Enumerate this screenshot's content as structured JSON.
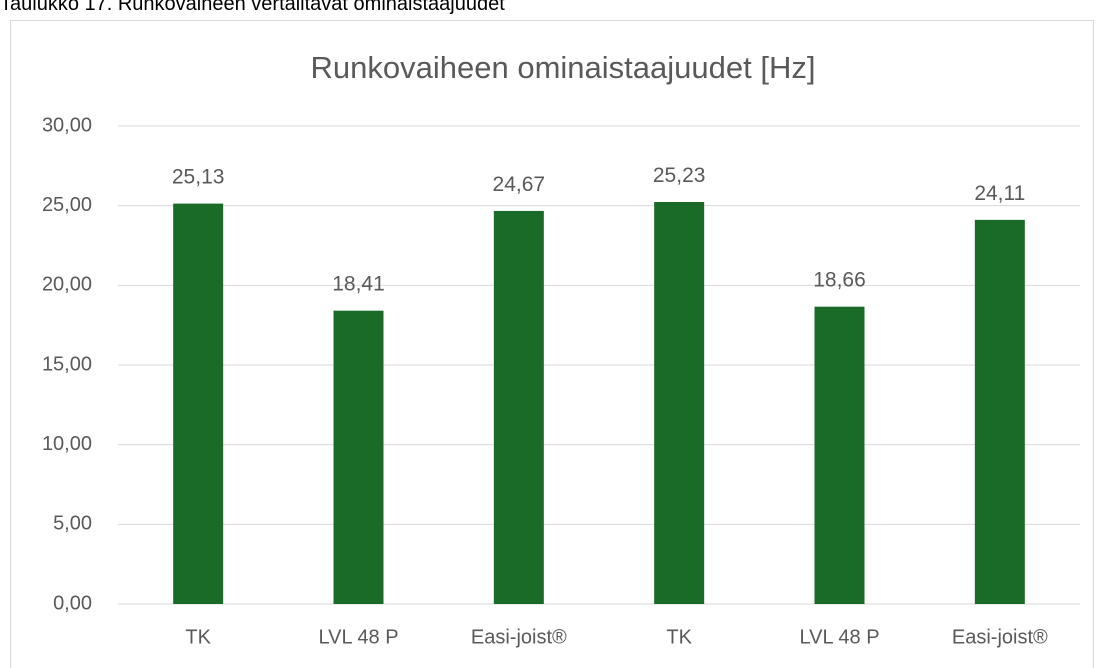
{
  "caption": "Taulukko 17. Runkovaiheen vertailtavat ominaistaajuudet",
  "chart_data": {
    "type": "bar",
    "title": "Runkovaiheen ominaistaajuudet [Hz]",
    "categories": [
      "TK",
      "LVL 48 P",
      "Easi-joist®",
      "TK",
      "LVL 48 P",
      "Easi-joist®"
    ],
    "values": [
      25.13,
      18.41,
      24.67,
      25.23,
      18.66,
      24.11
    ],
    "value_labels": [
      "25,13",
      "18,41",
      "24,67",
      "25,23",
      "18,66",
      "24,11"
    ],
    "color": "#1b6b28",
    "ylim": [
      0,
      30
    ],
    "yticks": [
      {
        "value": 0,
        "label": "0,00"
      },
      {
        "value": 5,
        "label": "5,00"
      },
      {
        "value": 10,
        "label": "10,00"
      },
      {
        "value": 15,
        "label": "15,00"
      },
      {
        "value": 20,
        "label": "20,00"
      },
      {
        "value": 25,
        "label": "25,00"
      },
      {
        "value": 30,
        "label": "30,00"
      }
    ],
    "grid": true
  }
}
